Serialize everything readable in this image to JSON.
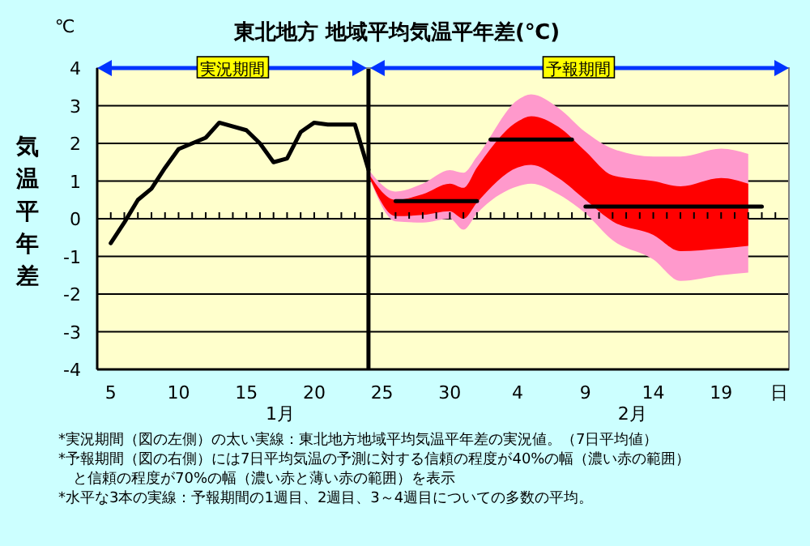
{
  "chart_data": {
    "type": "line",
    "title": "東北地方  地域平均気温平年差(℃)",
    "ylabel": "気温平年差",
    "xlabel": "日",
    "xlim": [
      "--01-04",
      "--02-24"
    ],
    "ylim": [
      -4,
      4
    ],
    "xticks": [
      {
        "value": "--01-05",
        "label": "5"
      },
      {
        "value": "--01-10",
        "label": "10"
      },
      {
        "value": "--01-15",
        "label": "15"
      },
      {
        "value": "--01-20",
        "label": "20"
      },
      {
        "value": "--01-25",
        "label": "25"
      },
      {
        "value": "--01-30",
        "label": "30"
      },
      {
        "value": "--02-04",
        "label": "4"
      },
      {
        "value": "--02-09",
        "label": "9"
      },
      {
        "value": "--02-14",
        "label": "14"
      },
      {
        "value": "--02-19",
        "label": "19"
      }
    ],
    "yticks": [
      -4,
      -3,
      -2,
      -1,
      0,
      1,
      2,
      3,
      4
    ],
    "grid": "y",
    "marker": "none",
    "line_style": "solid",
    "ref_lines": [
      {
        "axis": "x",
        "value": "--01-24",
        "color": "#000000"
      }
    ],
    "series": [
      {
        "type": "area",
        "color": "#ff99cc",
        "x": [
          "--01-24",
          "--01-26",
          "--01-28",
          "--01-30",
          "--01-31",
          "--02-01",
          "--02-04",
          "--02-05",
          "--02-07",
          "--02-09",
          "--02-11",
          "--02-14",
          "--02-16",
          "--02-19",
          "--02-21"
        ],
        "values": [
          null,
          null,
          null,
          null,
          null,
          null,
          null,
          null,
          null,
          null,
          null,
          null,
          null,
          null,
          null
        ],
        "upper": [
          1.3,
          0.72,
          0.93,
          1.29,
          1.22,
          1.65,
          3.15,
          3.3,
          2.94,
          2.3,
          1.86,
          1.65,
          1.65,
          1.86,
          1.72
        ],
        "lower": [
          1.15,
          -0.07,
          -0.1,
          0,
          -0.29,
          0.14,
          0.86,
          0.93,
          0.65,
          0.14,
          -0.57,
          -1.08,
          -1.65,
          -1.5,
          -1.43
        ]
      },
      {
        "type": "area",
        "color": "#ff0000",
        "x": [
          "--01-24",
          "--01-26",
          "--01-28",
          "--01-30",
          "--01-31",
          "--02-01",
          "--02-04",
          "--02-05",
          "--02-07",
          "--02-09",
          "--02-11",
          "--02-14",
          "--02-16",
          "--02-19",
          "--02-21"
        ],
        "values": [
          null,
          null,
          null,
          null,
          null,
          null,
          null,
          null,
          null,
          null,
          null,
          null,
          null,
          null,
          null
        ],
        "upper": [
          1.2,
          0.5,
          0.65,
          0.93,
          0.82,
          1.36,
          2.58,
          2.72,
          2.44,
          1.79,
          1.15,
          1.0,
          0.86,
          1.08,
          0.93
        ],
        "lower": [
          1.15,
          0.07,
          0.1,
          0.2,
          0,
          0.43,
          1.36,
          1.43,
          1.08,
          0.5,
          -0.07,
          -0.43,
          -0.86,
          -0.79,
          -0.72
        ]
      },
      {
        "color": "#000000",
        "x": [
          "--01-05",
          "--01-06",
          "--01-07",
          "--01-08",
          "--01-09",
          "--01-10",
          "--01-12",
          "--01-13",
          "--01-15",
          "--01-16",
          "--01-17",
          "--01-18",
          "--01-19",
          "--01-20",
          "--01-21",
          "--01-22",
          "--01-23",
          "--01-24"
        ],
        "values": [
          -0.65,
          -0.1,
          0.5,
          0.8,
          1.35,
          1.85,
          2.15,
          2.55,
          2.35,
          2.0,
          1.5,
          1.6,
          2.3,
          2.55,
          2.5,
          2.5,
          2.5,
          1.3
        ]
      },
      {
        "color": "#000000",
        "x": [
          "--01-26",
          "--02-01"
        ],
        "values": [
          0.47,
          0.47
        ]
      },
      {
        "color": "#000000",
        "x": [
          "--02-02",
          "--02-08"
        ],
        "values": [
          2.1,
          2.1
        ]
      },
      {
        "color": "#000000",
        "x": [
          "--02-09",
          "--02-22"
        ],
        "values": [
          0.32,
          0.32
        ]
      }
    ],
    "annotations": [
      "℃",
      "実況期間",
      "予報期間",
      "1月",
      "2月",
      "*実況期間（図の左側）の太い実線：東北地方地域平均気温平年差の実況値。（7日平均値）",
      "*予報期間（図の右側）には7日平均気温の予測に対する信頼の程度が40%の幅（濃い赤の範囲）",
      "　と信頼の程度が70%の幅（濃い赤と薄い赤の範囲）を表示",
      "*水平な3本の実線：予報期間の1週目、2週目、3～4週目についての多数の平均。"
    ]
  }
}
